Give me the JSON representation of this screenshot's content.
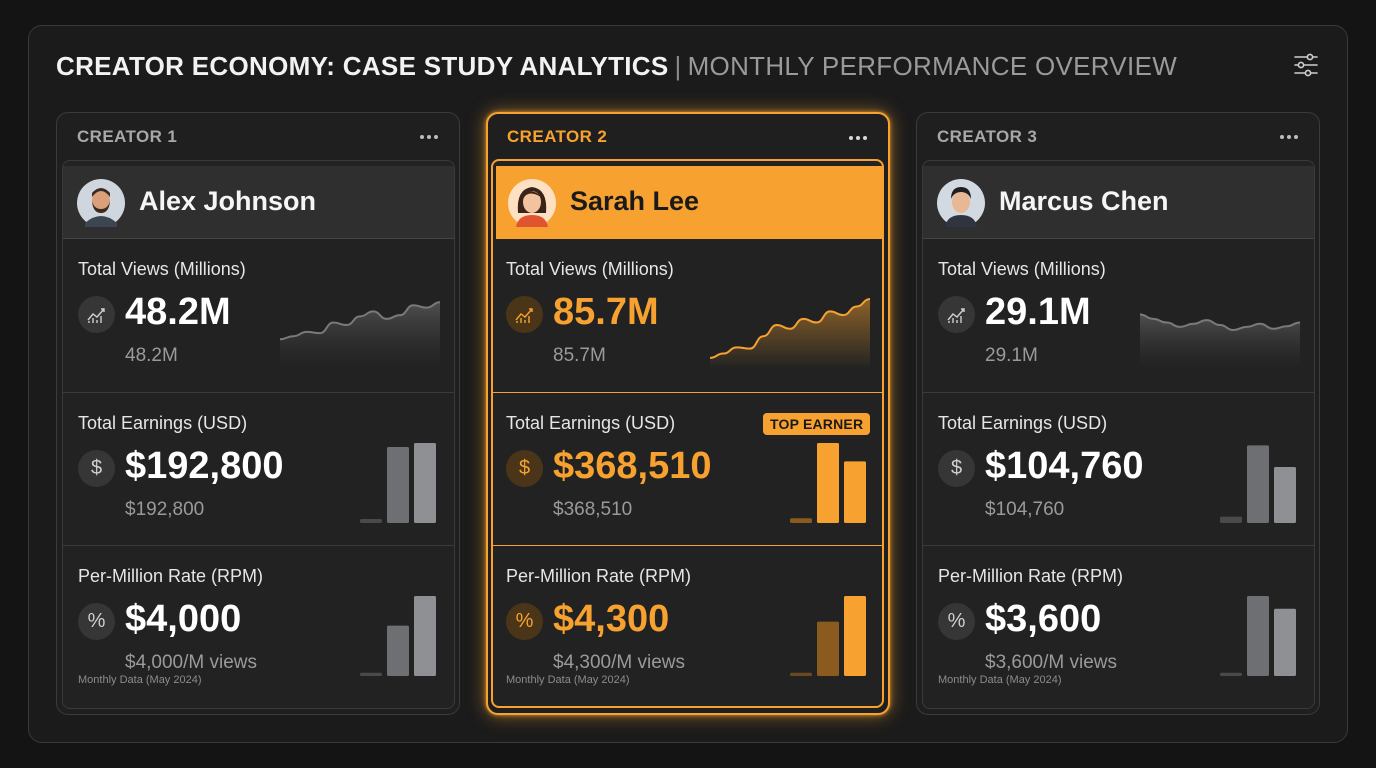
{
  "header": {
    "title": "CREATOR ECONOMY: CASE STUDY ANALYTICS",
    "separator": "|",
    "subtitle": "MONTHLY PERFORMANCE OVERVIEW"
  },
  "colors": {
    "accent": "#f7a230",
    "neutral_bar": "#8e9094",
    "background": "#1b1b1b"
  },
  "creators": [
    {
      "label": "CREATOR 1",
      "name": "Alex Johnson",
      "highlighted": false,
      "views": {
        "label": "Total Views (Millions)",
        "value": "48.2M",
        "sub": "48.2M",
        "trend": [
          0.35,
          0.4,
          0.47,
          0.45,
          0.62,
          0.58,
          0.72,
          0.8,
          0.68,
          0.74,
          0.9,
          0.86,
          0.95
        ]
      },
      "earnings": {
        "label": "Total Earnings (USD)",
        "value": "$192,800",
        "sub": "$192,800",
        "bars": [
          0.05,
          0.95,
          1.0
        ]
      },
      "rpm": {
        "label": "Per-Million Rate (RPM)",
        "value": "$4,000",
        "sub": "$4,000/M views",
        "bars": [
          0.04,
          0.63,
          1.0
        ]
      },
      "footnote": "Monthly Data (May 2024)"
    },
    {
      "label": "CREATOR 2",
      "name": "Sarah Lee",
      "highlighted": true,
      "views": {
        "label": "Total Views (Millions)",
        "value": "85.7M",
        "sub": "85.7M",
        "trend": [
          0.05,
          0.12,
          0.22,
          0.2,
          0.4,
          0.58,
          0.52,
          0.68,
          0.62,
          0.8,
          0.74,
          0.88,
          1.0
        ]
      },
      "earnings": {
        "label": "Total Earnings (USD)",
        "value": "$368,510",
        "sub": "$368,510",
        "bars": [
          0.06,
          1.0,
          0.77
        ],
        "badge": "TOP EARNER"
      },
      "rpm": {
        "label": "Per-Million Rate (RPM)",
        "value": "$4,300",
        "sub": "$4,300/M views",
        "bars": [
          0.04,
          0.68,
          1.0
        ]
      },
      "footnote": "Monthly Data (May 2024)"
    },
    {
      "label": "CREATOR 3",
      "name": "Marcus Chen",
      "highlighted": false,
      "views": {
        "label": "Total Views (Millions)",
        "value": "29.1M",
        "sub": "29.1M",
        "trend": [
          0.75,
          0.68,
          0.62,
          0.55,
          0.6,
          0.66,
          0.58,
          0.5,
          0.55,
          0.6,
          0.52,
          0.56,
          0.62
        ]
      },
      "earnings": {
        "label": "Total Earnings (USD)",
        "value": "$104,760",
        "sub": "$104,760",
        "bars": [
          0.08,
          0.97,
          0.7
        ]
      },
      "rpm": {
        "label": "Per-Million Rate (RPM)",
        "value": "$3,600",
        "sub": "$3,600/M views",
        "bars": [
          0.04,
          1.0,
          0.84
        ]
      },
      "footnote": "Monthly Data (May 2024)"
    }
  ],
  "icons": {
    "settings": "sliders-icon",
    "more": "more-horizontal-icon",
    "views": "trend-chart-icon",
    "earnings": "dollar-icon",
    "rpm": "percent-icon"
  }
}
